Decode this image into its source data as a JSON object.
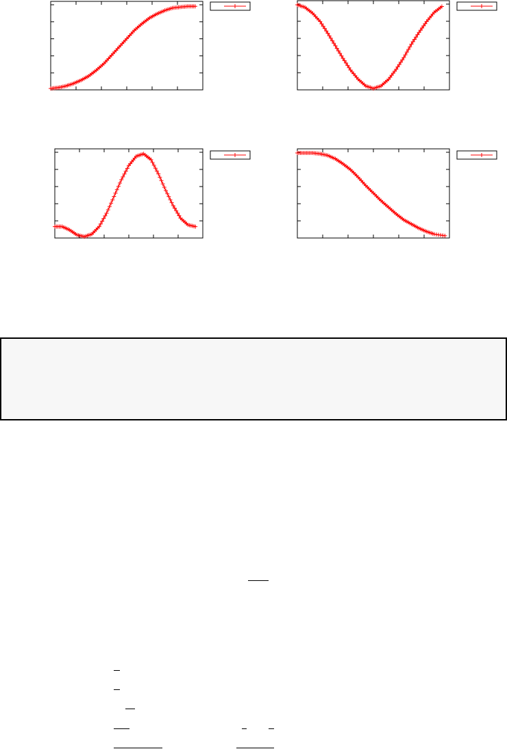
{
  "colors": {
    "series": "#ff0000",
    "frame": "#000000",
    "box_fill": "#f7f7f7"
  },
  "chart_data": [
    {
      "type": "line",
      "marker": "plus",
      "legend": "top-right-outside",
      "grid": false,
      "xlim": [
        0,
        1
      ],
      "ylim": [
        0,
        1
      ],
      "x": [
        0,
        0.05,
        0.1,
        0.15,
        0.2,
        0.25,
        0.3,
        0.35,
        0.4,
        0.45,
        0.5,
        0.55,
        0.6,
        0.65,
        0.7,
        0.75,
        0.8,
        0.85,
        0.9,
        0.95
      ],
      "y": [
        0,
        0.01,
        0.03,
        0.06,
        0.1,
        0.15,
        0.22,
        0.3,
        0.4,
        0.5,
        0.6,
        0.7,
        0.78,
        0.85,
        0.9,
        0.94,
        0.97,
        0.98,
        0.99,
        0.99
      ]
    },
    {
      "type": "line",
      "marker": "plus",
      "legend": "top-right-outside",
      "grid": false,
      "xlim": [
        0,
        1
      ],
      "ylim": [
        0,
        1
      ],
      "x": [
        0,
        0.05,
        0.1,
        0.15,
        0.2,
        0.25,
        0.3,
        0.35,
        0.4,
        0.45,
        0.5,
        0.55,
        0.6,
        0.65,
        0.7,
        0.75,
        0.8,
        0.85,
        0.9,
        0.95
      ],
      "y": [
        1,
        0.97,
        0.9,
        0.8,
        0.66,
        0.51,
        0.36,
        0.22,
        0.11,
        0.03,
        0.0,
        0.03,
        0.11,
        0.23,
        0.37,
        0.53,
        0.67,
        0.8,
        0.91,
        0.98
      ]
    },
    {
      "type": "line",
      "marker": "plus",
      "legend": "top-right-outside",
      "grid": false,
      "xlim": [
        0,
        1
      ],
      "ylim": [
        0,
        1
      ],
      "x": [
        0,
        0.05,
        0.1,
        0.15,
        0.2,
        0.25,
        0.3,
        0.35,
        0.4,
        0.45,
        0.5,
        0.55,
        0.6,
        0.65,
        0.7,
        0.75,
        0.8,
        0.85,
        0.9,
        0.95
      ],
      "y": [
        0.12,
        0.12,
        0.08,
        0.02,
        0.0,
        0.03,
        0.12,
        0.28,
        0.48,
        0.68,
        0.85,
        0.96,
        0.99,
        0.92,
        0.75,
        0.55,
        0.37,
        0.22,
        0.14,
        0.12
      ]
    },
    {
      "type": "line",
      "marker": "plus",
      "legend": "top-right-outside",
      "grid": false,
      "xlim": [
        0,
        1
      ],
      "ylim": [
        0,
        1
      ],
      "x": [
        0,
        0.05,
        0.1,
        0.15,
        0.2,
        0.25,
        0.3,
        0.35,
        0.4,
        0.45,
        0.5,
        0.55,
        0.6,
        0.65,
        0.7,
        0.75,
        0.8,
        0.85,
        0.9,
        0.97
      ],
      "y": [
        1,
        1,
        1,
        0.99,
        0.97,
        0.93,
        0.87,
        0.8,
        0.71,
        0.61,
        0.52,
        0.43,
        0.35,
        0.27,
        0.2,
        0.15,
        0.1,
        0.06,
        0.03,
        0.01
      ]
    }
  ]
}
